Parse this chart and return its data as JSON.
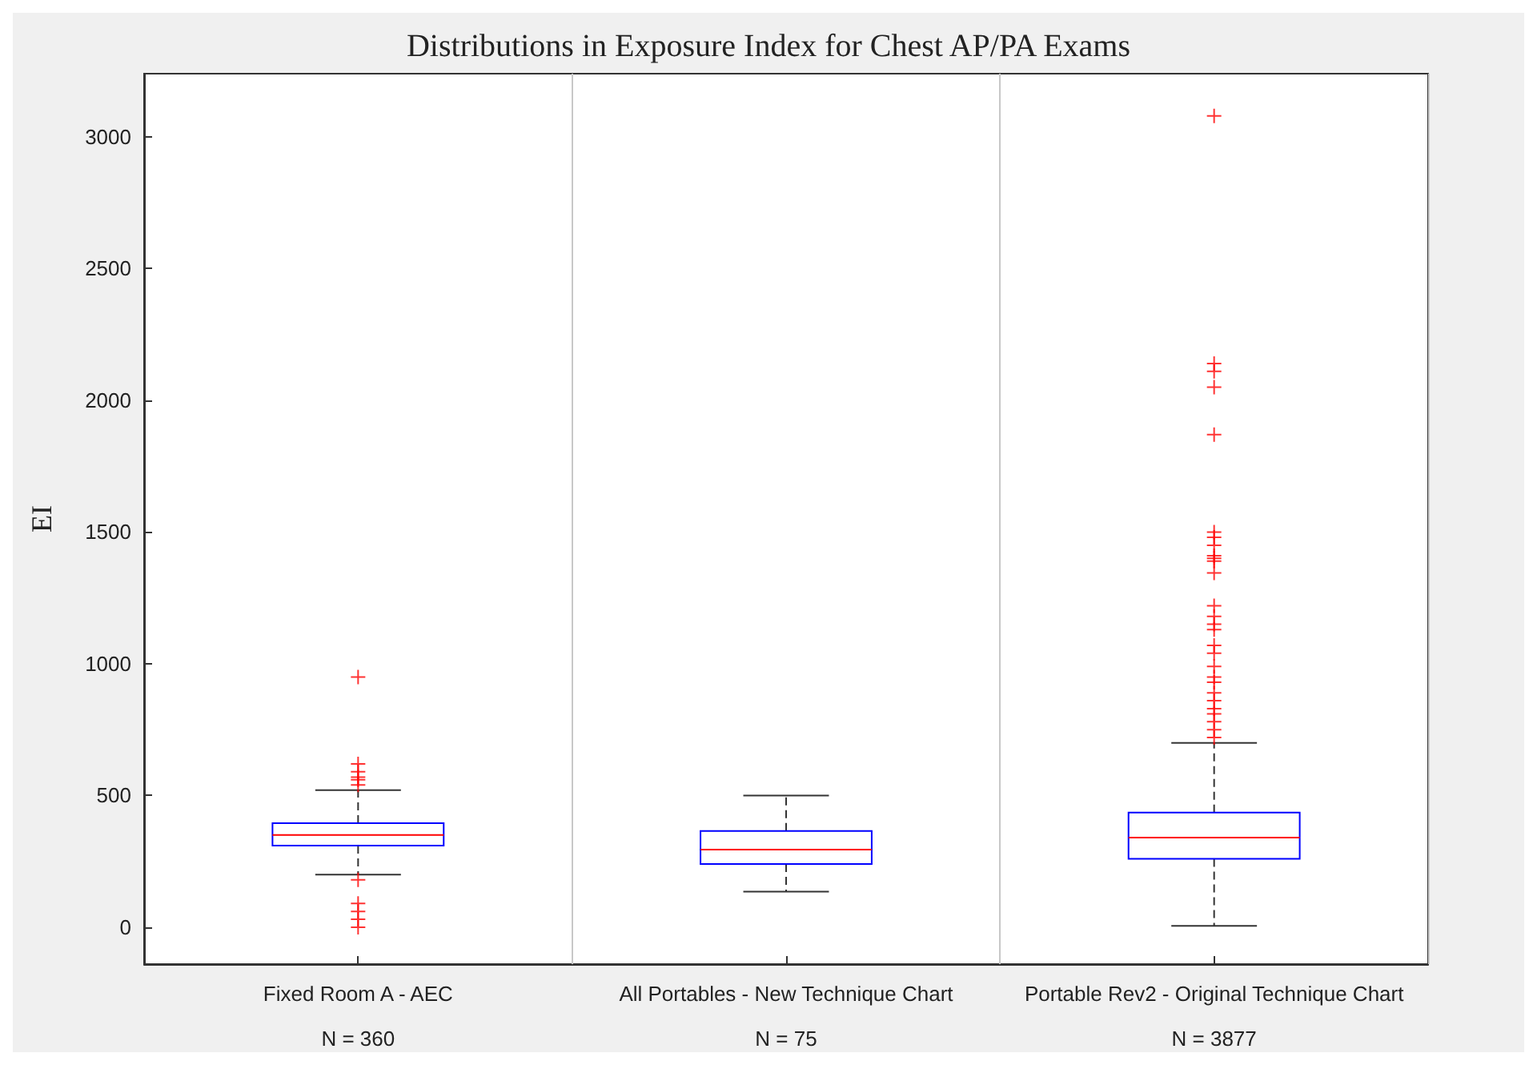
{
  "chart_data": {
    "type": "box",
    "title": "Distributions in Exposure Index for Chest AP/PA Exams",
    "ylabel": "EI",
    "categories": [
      "Fixed Room A - AEC",
      "All Portables - New Technique Chart",
      "Portable Rev2 - Original Technique Chart"
    ],
    "boxes": [
      {
        "low": 200,
        "q1": 310,
        "median": 350,
        "q3": 395,
        "high": 520,
        "outliers": [
          950,
          620,
          590,
          570,
          560,
          540,
          180,
          90,
          60,
          30,
          0
        ]
      },
      {
        "low": 135,
        "q1": 240,
        "median": 295,
        "q3": 365,
        "high": 500
      },
      {
        "low": 5,
        "q1": 260,
        "median": 340,
        "q3": 435,
        "high": 700,
        "outliers": [
          3080,
          2140,
          2110,
          2050,
          1870,
          1500,
          1480,
          1450,
          1410,
          1400,
          1390,
          1345,
          1220,
          1180,
          1150,
          1130,
          1070,
          1040,
          990,
          950,
          930,
          890,
          860,
          830,
          810,
          780,
          750,
          720
        ]
      }
    ],
    "ylim": [
      -140,
      3240
    ],
    "yticks": [
      0,
      500,
      1000,
      1500,
      2000,
      2500,
      3000
    ],
    "grid": "x",
    "annotations": [
      "N = 360",
      "N = 75",
      "N = 3877"
    ]
  }
}
